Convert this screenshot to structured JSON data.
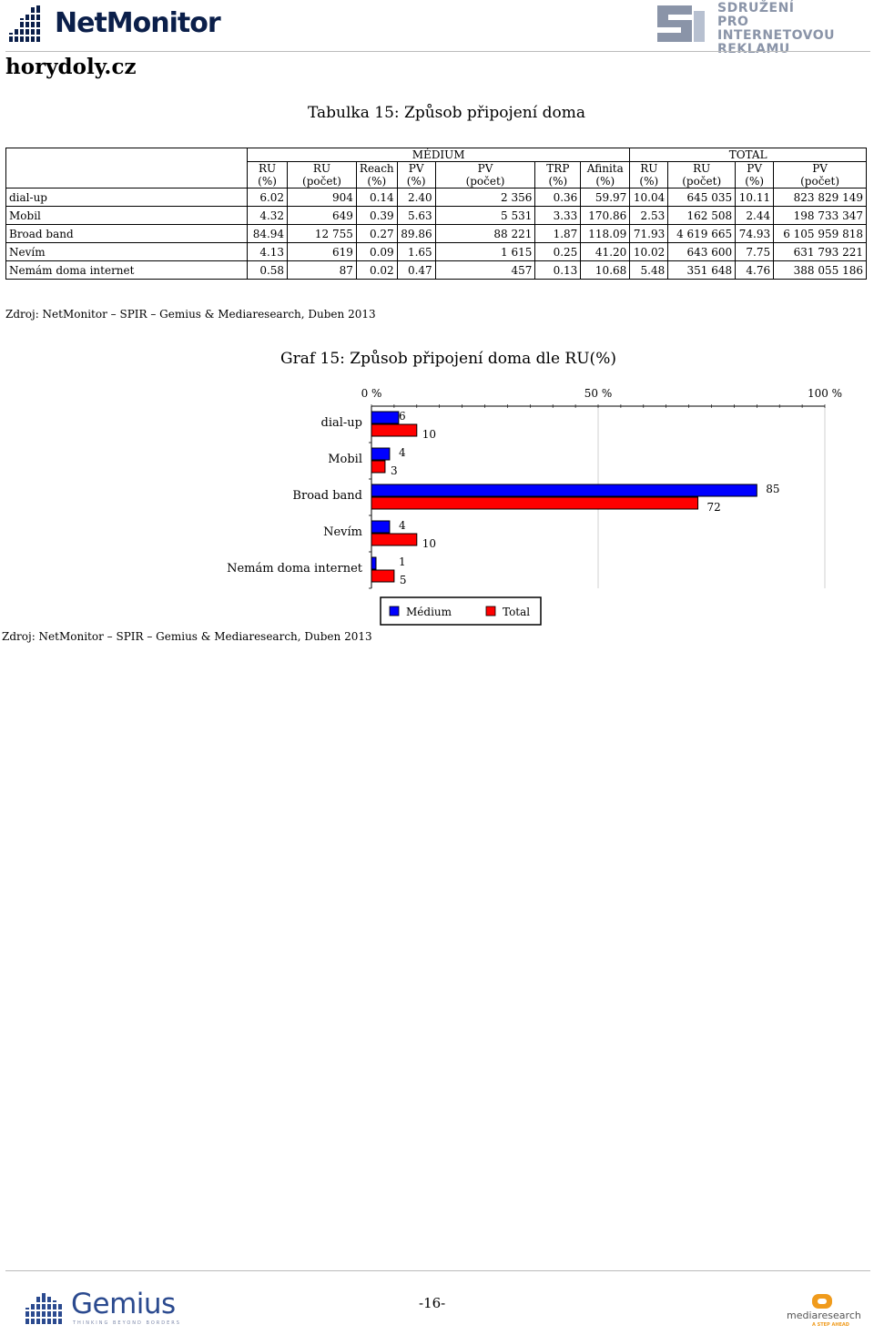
{
  "header": {
    "netmonitor_logo_text": "NetMonitor",
    "spir_logo_lines": [
      "SDRUŽENÍ",
      "PRO INTERNETOVOU",
      "REKLAMU"
    ],
    "site_name": "horydoly.cz"
  },
  "table": {
    "title": "Tabulka 15: Způsob připojení doma",
    "group_labels": {
      "medium": "MÉDIUM",
      "total": "TOTAL"
    },
    "medium_columns": [
      [
        "RU",
        "(%)"
      ],
      [
        "RU",
        "(počet)"
      ],
      [
        "Reach",
        "(%)"
      ],
      [
        "PV",
        "(%)"
      ],
      [
        "PV",
        "(počet)"
      ],
      [
        "TRP",
        "(%)"
      ],
      [
        "Afinita",
        "(%)"
      ]
    ],
    "total_columns": [
      [
        "RU",
        "(%)"
      ],
      [
        "RU",
        "(počet)"
      ],
      [
        "PV",
        "(%)"
      ],
      [
        "PV",
        "(počet)"
      ]
    ],
    "rows": [
      {
        "label": "dial-up",
        "values": [
          "6.02",
          "904",
          "0.14",
          "2.40",
          "2 356",
          "0.36",
          "59.97",
          "10.04",
          "645 035",
          "10.11",
          "823 829 149"
        ]
      },
      {
        "label": "Mobil",
        "values": [
          "4.32",
          "649",
          "0.39",
          "5.63",
          "5 531",
          "3.33",
          "170.86",
          "2.53",
          "162 508",
          "2.44",
          "198 733 347"
        ]
      },
      {
        "label": "Broad band",
        "values": [
          "84.94",
          "12 755",
          "0.27",
          "89.86",
          "88 221",
          "1.87",
          "118.09",
          "71.93",
          "4 619 665",
          "74.93",
          "6 105 959 818"
        ]
      },
      {
        "label": "Nevím",
        "values": [
          "4.13",
          "619",
          "0.09",
          "1.65",
          "1 615",
          "0.25",
          "41.20",
          "10.02",
          "643 600",
          "7.75",
          "631 793 221"
        ]
      },
      {
        "label": "Nemám doma internet",
        "values": [
          "0.58",
          "87",
          "0.02",
          "0.47",
          "457",
          "0.13",
          "10.68",
          "5.48",
          "351 648",
          "4.76",
          "388 055 186"
        ]
      }
    ],
    "source": "Zdroj: NetMonitor – SPIR – Gemius & Mediaresearch, Duben 2013"
  },
  "chart": {
    "title": "Graf 15: Způsob připojení doma dle RU(%)",
    "source": "Zdroj: NetMonitor – SPIR – Gemius & Mediaresearch, Duben 2013"
  },
  "chart_data": {
    "type": "bar",
    "orientation": "horizontal",
    "title": "Graf 15: Způsob připojení doma dle RU(%)",
    "categories": [
      "dial-up",
      "Mobil",
      "Broad band",
      "Nevím",
      "Nemám doma internet"
    ],
    "series": [
      {
        "name": "Médium",
        "color": "#0000ff",
        "values": [
          6,
          4,
          85,
          4,
          1
        ]
      },
      {
        "name": "Total",
        "color": "#ff0000",
        "values": [
          10,
          3,
          72,
          10,
          5
        ]
      }
    ],
    "x_tick_labels": [
      "0 %",
      "50 %",
      "100 %"
    ],
    "xlim": [
      0,
      100
    ],
    "grid": true,
    "legend_position": "bottom"
  },
  "footer": {
    "gemius_logo_text": "Gemius",
    "gemius_tagline": "THINKING BEYOND BORDERS",
    "page_number": "-16-",
    "mediaresearch_logo_text": "mediaresearch",
    "mediaresearch_tagline": "A STEP AHEAD"
  }
}
